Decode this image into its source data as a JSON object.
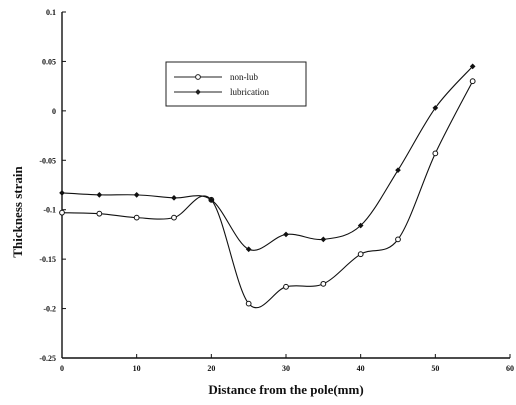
{
  "chart_data": {
    "type": "line",
    "xlabel": "Distance from the pole(mm)",
    "ylabel": "Thickness strain",
    "xlim": [
      0,
      60
    ],
    "ylim": [
      -0.25,
      0.1
    ],
    "xticks": [
      "0",
      "10",
      "20",
      "30",
      "40",
      "50",
      "60"
    ],
    "yticks": [
      "0.1",
      "0.05",
      "0",
      "-0.05",
      "-0.1",
      "-0.15",
      "-0.2",
      "-0.25"
    ],
    "grid": false,
    "legend_position": "top-center",
    "x": [
      0,
      5,
      10,
      15,
      20,
      25,
      30,
      35,
      40,
      45,
      50,
      55
    ],
    "series": [
      {
        "name": "non-lub",
        "marker": "open-circle",
        "color": "#111111",
        "values": [
          -0.103,
          -0.104,
          -0.108,
          -0.108,
          -0.09,
          -0.195,
          -0.178,
          -0.175,
          -0.145,
          -0.13,
          -0.043,
          0.03
        ]
      },
      {
        "name": "lubrication",
        "marker": "filled-diamond",
        "color": "#111111",
        "values": [
          -0.083,
          -0.085,
          -0.085,
          -0.088,
          -0.09,
          -0.14,
          -0.125,
          -0.13,
          -0.116,
          -0.06,
          0.003,
          0.045
        ]
      }
    ]
  }
}
